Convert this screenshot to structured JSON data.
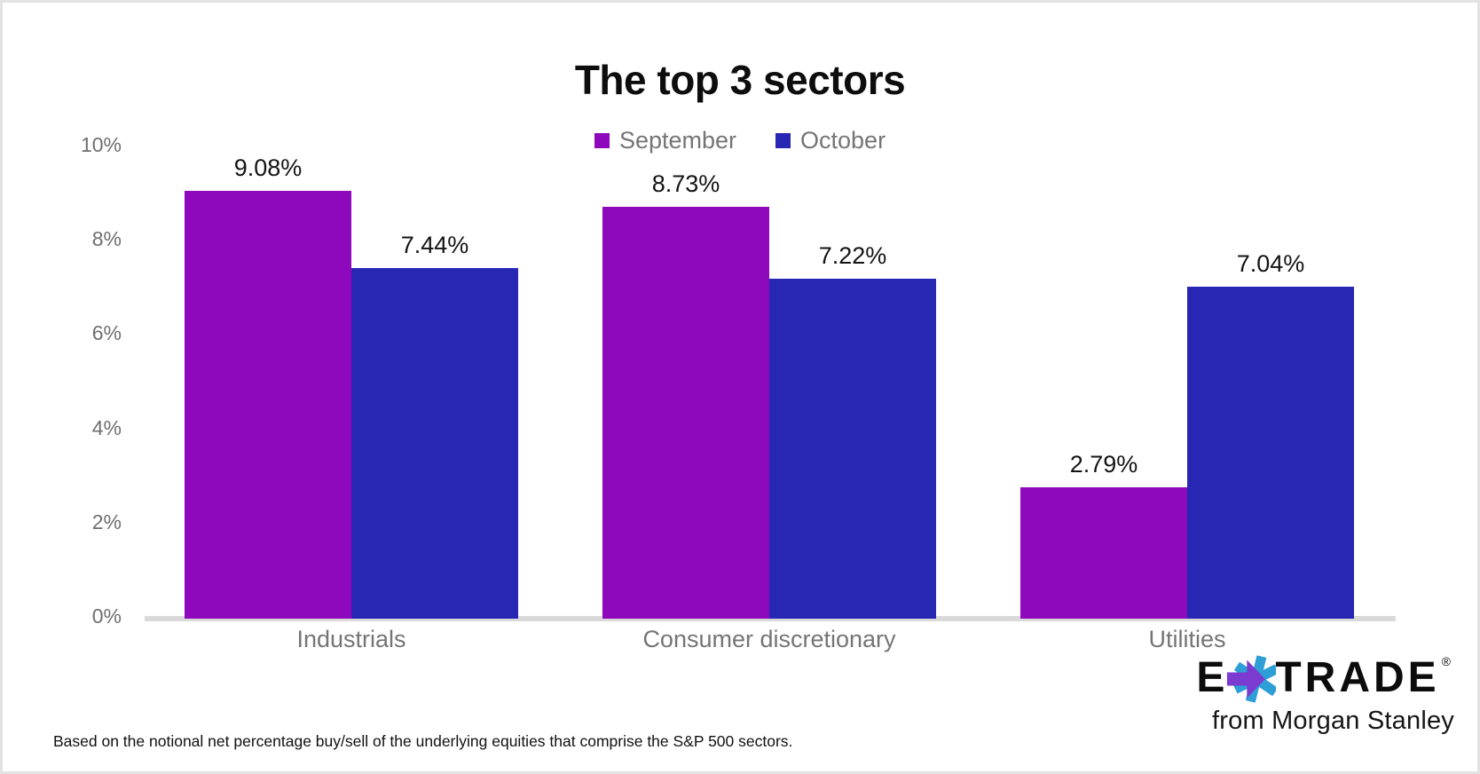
{
  "chart_data": {
    "type": "bar",
    "title": "The top 3 sectors",
    "categories": [
      "Industrials",
      "Consumer discretionary",
      "Utilities"
    ],
    "series": [
      {
        "name": "September",
        "color": "#8F09BC",
        "values": [
          9.08,
          8.73,
          2.79
        ],
        "value_labels": [
          "9.08%",
          "8.73%",
          "2.79%"
        ]
      },
      {
        "name": "October",
        "color": "#2727B4",
        "values": [
          7.44,
          7.22,
          7.04
        ],
        "value_labels": [
          "7.44%",
          "7.22%",
          "7.04%"
        ]
      }
    ],
    "y_ticks": [
      {
        "label": "0%",
        "value": 0
      },
      {
        "label": "2%",
        "value": 2
      },
      {
        "label": "4%",
        "value": 4
      },
      {
        "label": "6%",
        "value": 6
      },
      {
        "label": "8%",
        "value": 8
      },
      {
        "label": "10%",
        "value": 10
      }
    ],
    "ylim": [
      0,
      10
    ],
    "grid": false,
    "legend_position": "top-center",
    "colors": {
      "axis_text": "#6f6f6f",
      "category_text": "#757575",
      "value_text": "#141414",
      "baseline": "#d9d9d9"
    }
  },
  "footnote": "Based on the notional net percentage buy/sell of the underlying equities that comprise the S&P 500 sectors.",
  "logo": {
    "brand_left": "E",
    "brand_right": "TRADE",
    "registered": "®",
    "tagline": "from Morgan Stanley",
    "star_purple": "#7B3BD0",
    "star_blue": "#2E9FD6"
  }
}
